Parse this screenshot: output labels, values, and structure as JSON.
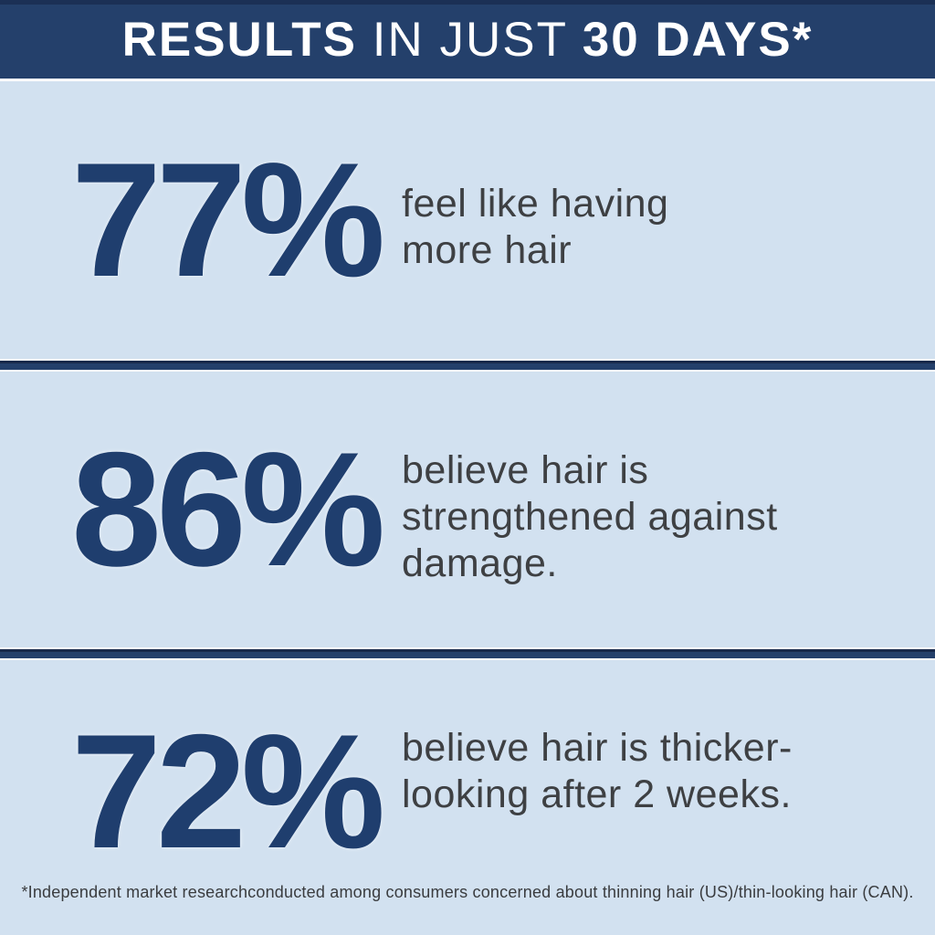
{
  "header": {
    "title_bold_1": "RESULTS",
    "title_light": " IN JUST ",
    "title_bold_2": "30 DAYS*"
  },
  "stats": [
    {
      "value": "77%",
      "lines": [
        "feel like having",
        "more hair"
      ]
    },
    {
      "value": "86%",
      "lines": [
        "believe hair is",
        "strengthened against",
        "damage."
      ]
    },
    {
      "value": "72%",
      "lines": [
        "believe hair is thicker-",
        "looking after 2 weeks."
      ]
    }
  ],
  "footnote": {
    "text": "*Independent market researchconducted among consumers concerned about thinning hair (US)/thin-looking hair (CAN)."
  },
  "colors": {
    "header_navy": "#24406b",
    "header_navy_dark_edge": "#1b3055",
    "numeral_navy": "#1f3e6e",
    "background_light_blue": "#d2e1f0",
    "divider_navy": "#24406b",
    "body_text_gray": "#3e4043",
    "header_text_white": "#ffffff"
  },
  "chart_data": {
    "type": "table",
    "title": "RESULTS IN JUST 30 DAYS*",
    "categories": [
      "feel like having more hair",
      "believe hair is strengthened against damage.",
      "believe hair is thicker-looking after 2 weeks."
    ],
    "values": [
      77,
      86,
      72
    ],
    "unit": "%",
    "footnote": "*Independent market researchconducted among consumers concerned about thinning hair (US)/thin-looking hair (CAN)."
  }
}
